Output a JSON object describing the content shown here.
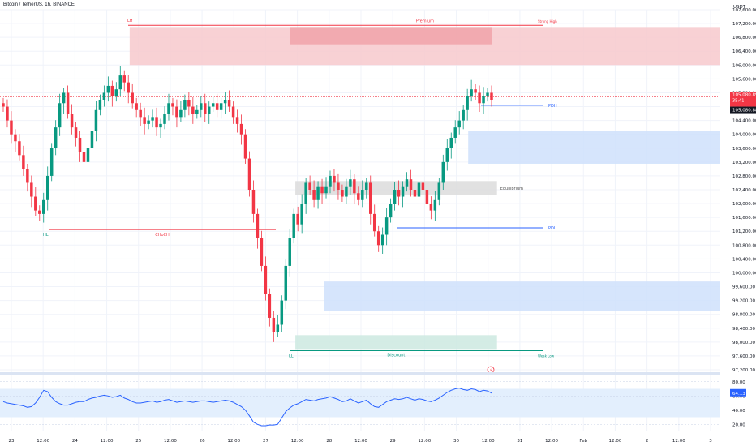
{
  "header": {
    "title": "Bitcoin / TetherUS, 1h, BINANCE",
    "currency": "USDT"
  },
  "colors": {
    "up": "#089981",
    "down": "#f23645",
    "grid": "#f0f3fa",
    "premium_fill": "#f7c9cc",
    "premium_inner": "#f0a0a6",
    "demand_fill": "#cfe0fb",
    "discount_fill": "#cde9e0",
    "equilibrium_fill": "#dcdcdc",
    "rsi_line": "#2962ff",
    "rsi_fill": "#e3effd",
    "price_tag": "#f23645",
    "rsi_tag": "#2962ff"
  },
  "chart_data": {
    "type": "candlestick",
    "price_axis": {
      "min": 97200,
      "max": 107600,
      "ticks": [
        107600,
        107200,
        106800,
        106400,
        106000,
        105600,
        105200,
        104800,
        104400,
        104000,
        103600,
        103200,
        102800,
        102400,
        102000,
        101600,
        101200,
        100800,
        100400,
        100000,
        99600,
        99200,
        98800,
        98400,
        98000,
        97600,
        97200
      ]
    },
    "price_tick_labels": [
      "107,600.00",
      "107,200.00",
      "106,800.00",
      "106,400.00",
      "106,000.00",
      "105,600.00",
      "105,200.00",
      "104,800.00",
      "104,400.00",
      "104,000.00",
      "103,600.00",
      "103,200.00",
      "102,800.00",
      "102,400.00",
      "102,000.00",
      "101,600.00",
      "101,200.00",
      "100,800.00",
      "100,400.00",
      "100,000.00",
      "99,600.00",
      "99,200.00",
      "98,800.00",
      "98,400.00",
      "98,000.00",
      "97,600.00",
      "97,200.00"
    ],
    "time_labels": [
      "23",
      "12:00",
      "24",
      "12:00",
      "25",
      "12:00",
      "26",
      "12:00",
      "27",
      "12:00",
      "28",
      "12:00",
      "29",
      "12:00",
      "30",
      "12:00",
      "31",
      "12:00",
      "Feb",
      "12:00",
      "2",
      "12:00",
      "3"
    ],
    "last_price": {
      "price": "105,080.89",
      "countdown": "35:41",
      "previous": "105,080.88",
      "value": 105080.89
    },
    "candle_closes": [
      104800,
      104400,
      104000,
      103800,
      103400,
      103000,
      102600,
      102200,
      101800,
      101700,
      102100,
      102800,
      103600,
      104200,
      104900,
      105200,
      104600,
      104200,
      103900,
      103500,
      103200,
      103600,
      104100,
      104700,
      105000,
      105200,
      105400,
      105100,
      105300,
      105700,
      105500,
      105200,
      104900,
      104700,
      104500,
      104300,
      104400,
      104500,
      104200,
      104300,
      104600,
      104900,
      104800,
      104500,
      104700,
      105000,
      104800,
      104600,
      104700,
      104900,
      104600,
      104800,
      104900,
      104700,
      104900,
      105000,
      104800,
      104500,
      104300,
      104000,
      103300,
      102400,
      101700,
      101000,
      100200,
      99400,
      98700,
      98300,
      98500,
      99200,
      100200,
      101000,
      101700,
      101400,
      102000,
      102600,
      102400,
      102100,
      102500,
      102300,
      102500,
      102800,
      102600,
      102400,
      102200,
      102500,
      102700,
      102300,
      102100,
      102400,
      102600,
      101700,
      101200,
      100800,
      101100,
      101600,
      102000,
      102400,
      102200,
      102500,
      102700,
      102400,
      102200,
      102600,
      102400,
      102000,
      101800,
      102100,
      102600,
      103200,
      103600,
      103900,
      104200,
      104400,
      104700,
      105100,
      105300,
      105200,
      104900,
      105100,
      105200,
      105000
    ],
    "rsi": {
      "levels": [
        80,
        60,
        40,
        20
      ],
      "tick_labels": [
        "80.00",
        "60.00",
        "40.00",
        "20.00"
      ],
      "value_label": "64.13",
      "upper_band": 70,
      "lower_band": 30,
      "values": [
        52,
        50,
        49,
        48,
        47,
        46,
        44,
        45,
        50,
        58,
        68,
        66,
        58,
        52,
        49,
        47,
        47,
        49,
        51,
        52,
        52,
        55,
        57,
        58,
        60,
        61,
        60,
        58,
        59,
        61,
        57,
        55,
        52,
        50,
        50,
        51,
        52,
        53,
        51,
        52,
        54,
        55,
        53,
        51,
        52,
        53,
        52,
        51,
        52,
        53,
        53,
        52,
        51,
        52,
        53,
        54,
        53,
        51,
        48,
        45,
        40,
        32,
        23,
        20,
        18,
        18,
        19,
        19,
        20,
        29,
        38,
        43,
        47,
        49,
        52,
        55,
        54,
        53,
        55,
        56,
        57,
        59,
        57,
        55,
        52,
        53,
        56,
        53,
        50,
        52,
        54,
        49,
        45,
        44,
        48,
        52,
        54,
        56,
        55,
        56,
        58,
        56,
        54,
        56,
        55,
        53,
        52,
        54,
        57,
        61,
        65,
        68,
        70,
        71,
        69,
        68,
        70,
        69,
        66,
        68,
        67,
        64
      ]
    },
    "zones": [
      {
        "label": "Premium",
        "top": 107100,
        "bottom": 106000,
        "start": 0.18,
        "end": 1
      },
      {
        "label": "Equilibrium",
        "top": 102650,
        "bottom": 102250,
        "start": 0.41,
        "end": 0.69
      },
      {
        "label": "Discount",
        "top": 98200,
        "bottom": 97800,
        "start": 0.41,
        "end": 0.69
      },
      {
        "label": "",
        "top": 104100,
        "bottom": 103150,
        "start": 0.65,
        "end": 1
      },
      {
        "label": "",
        "top": 99750,
        "bottom": 98900,
        "start": 0.45,
        "end": 1
      }
    ],
    "lines": [
      {
        "label": "PDH",
        "price": 104840
      },
      {
        "label": "PDL",
        "price": 101300
      },
      {
        "label": "CHoCH",
        "price": 101250
      },
      {
        "label": "Strong High",
        "price": 107150
      },
      {
        "label": "Weak Low",
        "price": 97750
      }
    ],
    "markers": {
      "lh": "LH",
      "hl": "HL",
      "ll": "LL",
      "flash": "⚡"
    }
  }
}
